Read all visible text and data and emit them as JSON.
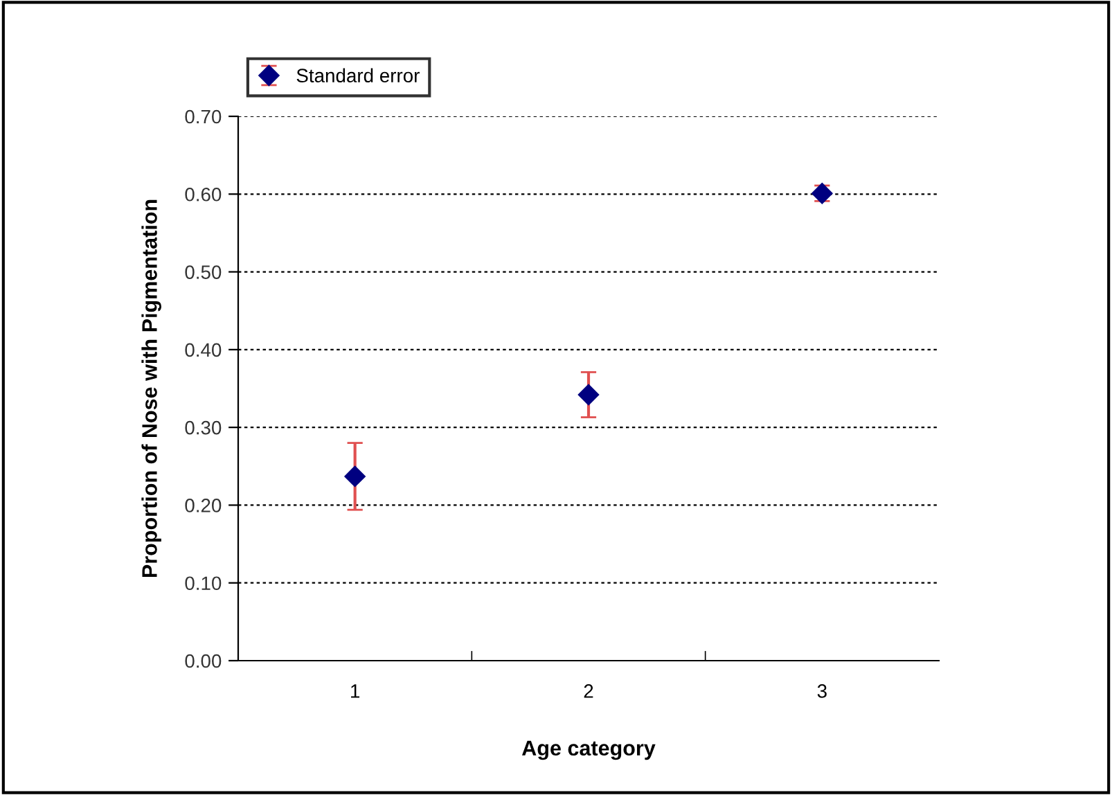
{
  "chart_data": {
    "type": "scatter",
    "xlabel": "Age category",
    "ylabel": "Proportion of Nose with Pigmentation",
    "categories": [
      "1",
      "2",
      "3"
    ],
    "series": [
      {
        "name": "Standard error",
        "color": "#000080",
        "values": [
          0.237,
          0.342,
          0.601
        ],
        "errors": [
          0.043,
          0.029,
          0.01
        ]
      }
    ],
    "ylim": [
      0,
      0.7
    ],
    "yticks": [
      {
        "value": 0,
        "label": "0.00"
      },
      {
        "value": 0.1,
        "label": "0.10"
      },
      {
        "value": 0.2,
        "label": "0.20"
      },
      {
        "value": 0.3,
        "label": "0.30"
      },
      {
        "value": 0.4,
        "label": "0.40"
      },
      {
        "value": 0.5,
        "label": "0.50"
      },
      {
        "value": 0.6,
        "label": "0.60"
      },
      {
        "value": 0.7,
        "label": "0.70"
      }
    ],
    "grid": "y",
    "legend": "top left",
    "marker": "diamond"
  }
}
